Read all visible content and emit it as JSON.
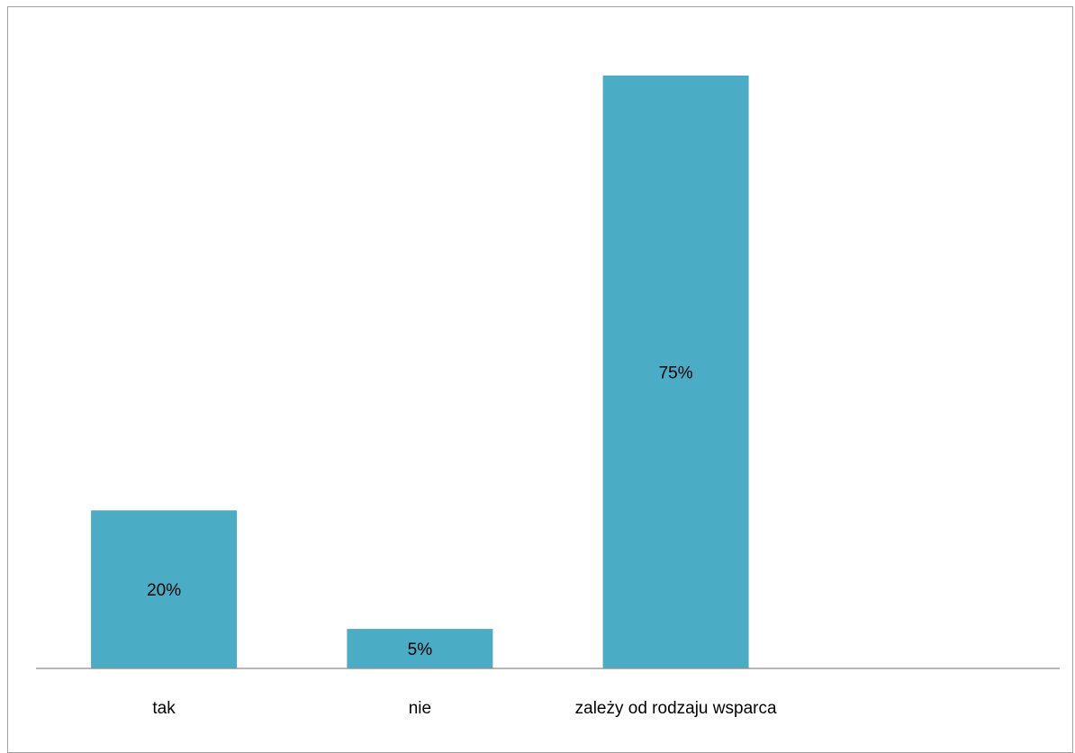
{
  "chart_data": {
    "type": "bar",
    "title": "",
    "xlabel": "",
    "ylabel": "",
    "categories": [
      "tak",
      "nie",
      "zależy od rodzaju wsparca"
    ],
    "values": [
      20,
      5,
      75
    ],
    "data_labels": [
      "20%",
      "5%",
      "75%"
    ],
    "ylim": [
      0,
      75
    ],
    "grid": false,
    "legend": "none",
    "bar_color": "#4BACC6"
  }
}
